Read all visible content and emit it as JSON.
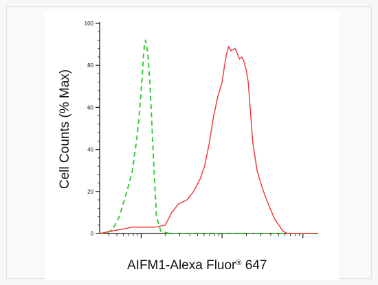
{
  "chart_data": {
    "type": "line",
    "xlabel": "AIFM1-Alexa Fluor",
    "xlabel_superscript": "®",
    "xlabel_suffix": " 647",
    "ylabel": "Cell Counts (% Max)",
    "ylim": [
      0,
      100
    ],
    "yticks": [
      "0",
      "20",
      "40",
      "60",
      "80",
      "100"
    ],
    "x_scale": "log",
    "xticks_labeled": false,
    "grid": false,
    "legend": "none",
    "series": [
      {
        "color": "#32cd32",
        "style": "dashed",
        "x": [
          0.0,
          0.03,
          0.06,
          0.09,
          0.11,
          0.13,
          0.15,
          0.16,
          0.17,
          0.18,
          0.19,
          0.195,
          0.2,
          0.205,
          0.21,
          0.22,
          0.23,
          0.24,
          0.25,
          0.26,
          0.28,
          0.32,
          0.4,
          0.55,
          0.7,
          0.85,
          1.0
        ],
        "y": [
          0,
          0,
          2,
          8,
          15,
          22,
          30,
          38,
          45,
          55,
          68,
          75,
          84,
          90,
          92,
          86,
          72,
          50,
          28,
          8,
          1,
          0,
          0,
          0,
          0,
          0,
          0
        ]
      },
      {
        "color": "#f03c3c",
        "style": "solid",
        "x": [
          0.0,
          0.05,
          0.1,
          0.15,
          0.2,
          0.25,
          0.3,
          0.33,
          0.36,
          0.4,
          0.43,
          0.46,
          0.48,
          0.5,
          0.52,
          0.54,
          0.56,
          0.57,
          0.58,
          0.59,
          0.6,
          0.62,
          0.64,
          0.65,
          0.66,
          0.67,
          0.68,
          0.69,
          0.7,
          0.72,
          0.74,
          0.76,
          0.78,
          0.8,
          0.82,
          0.84,
          0.86,
          0.88,
          0.9,
          0.95,
          1.0
        ],
        "y": [
          0,
          1,
          2,
          3,
          3,
          3,
          4,
          10,
          14,
          16,
          20,
          26,
          32,
          42,
          55,
          65,
          72,
          79,
          85,
          89,
          87,
          88,
          83,
          84,
          82,
          78,
          72,
          58,
          44,
          30,
          23,
          17,
          12,
          7,
          4,
          1,
          0,
          0,
          0,
          0,
          0
        ]
      }
    ]
  }
}
